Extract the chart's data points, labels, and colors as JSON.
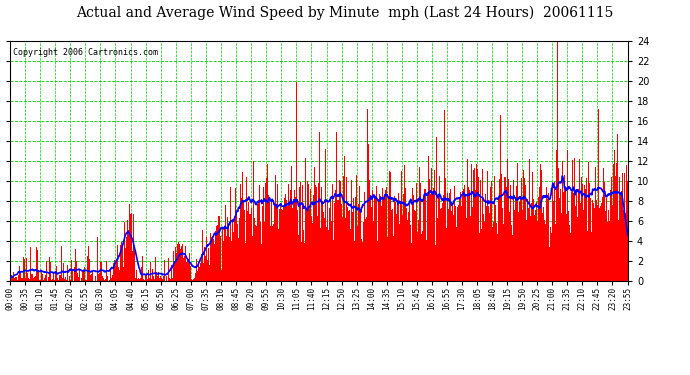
{
  "title": "Actual and Average Wind Speed by Minute  mph (Last 24 Hours)  20061115",
  "copyright": "Copyright 2006 Cartronics.com",
  "ylim": [
    0.0,
    24.0
  ],
  "yticks": [
    0.0,
    2.0,
    4.0,
    6.0,
    8.0,
    10.0,
    12.0,
    14.0,
    16.0,
    18.0,
    20.0,
    22.0,
    24.0
  ],
  "bar_color": "#FF0000",
  "line_color": "#0000FF",
  "bg_color": "#FFFFFF",
  "grid_color": "#00CC00",
  "title_fontsize": 10,
  "copyright_fontsize": 6,
  "xtick_fontsize": 5.5,
  "ytick_fontsize": 7,
  "n_minutes": 1440,
  "xtick_labels": [
    "00:00",
    "00:35",
    "01:10",
    "01:45",
    "02:20",
    "02:55",
    "03:30",
    "04:05",
    "04:40",
    "05:15",
    "05:50",
    "06:25",
    "07:00",
    "07:35",
    "08:10",
    "08:45",
    "09:20",
    "09:55",
    "10:30",
    "11:05",
    "11:40",
    "12:15",
    "12:50",
    "13:25",
    "14:00",
    "14:35",
    "15:10",
    "15:45",
    "16:20",
    "16:55",
    "17:30",
    "18:05",
    "18:40",
    "19:15",
    "19:50",
    "20:25",
    "21:00",
    "21:35",
    "22:10",
    "22:45",
    "23:20",
    "23:55"
  ],
  "n_xticks": 42
}
